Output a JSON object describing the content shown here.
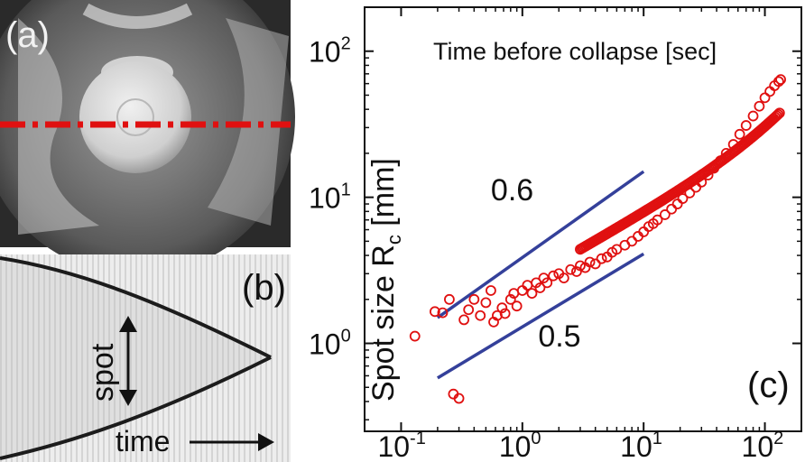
{
  "panel_a": {
    "label": "(a)"
  },
  "panel_b": {
    "label": "(b)",
    "spot_label": "spot",
    "time_label": "time"
  },
  "chart_data": {
    "type": "scatter",
    "title": "Time before collapse [sec]",
    "xlabel": "Time before collapse [sec]",
    "ylabel": "Spot size R",
    "ylabel_sub": "c",
    "ylabel_unit": " [mm]",
    "panel_label": "(c)",
    "xscale": "log",
    "yscale": "log",
    "xlim": [
      0.05,
      200
    ],
    "ylim": [
      0.25,
      200
    ],
    "x_ticks": [
      {
        "base": "10",
        "exp": "-1"
      },
      {
        "base": "10",
        "exp": "0"
      },
      {
        "base": "10",
        "exp": "1"
      },
      {
        "base": "10",
        "exp": "2"
      }
    ],
    "y_ticks": [
      {
        "base": "10",
        "exp": "0"
      },
      {
        "base": "10",
        "exp": "1"
      },
      {
        "base": "10",
        "exp": "2"
      }
    ],
    "reference_lines": [
      {
        "label": "0.6",
        "slope": 0.6,
        "x": [
          0.2,
          10
        ],
        "y": [
          1.5,
          15
        ]
      },
      {
        "label": "0.5",
        "slope": 0.5,
        "x": [
          0.2,
          10
        ],
        "y": [
          0.58,
          4.1
        ]
      }
    ],
    "series": [
      {
        "name": "Spot size R_c",
        "color": "#e01010",
        "points": [
          [
            0.13,
            1.12
          ],
          [
            0.19,
            1.65
          ],
          [
            0.22,
            1.62
          ],
          [
            0.25,
            2.0
          ],
          [
            0.27,
            0.45
          ],
          [
            0.3,
            0.42
          ],
          [
            0.33,
            1.45
          ],
          [
            0.36,
            1.7
          ],
          [
            0.4,
            2.0
          ],
          [
            0.45,
            1.55
          ],
          [
            0.5,
            1.9
          ],
          [
            0.55,
            2.3
          ],
          [
            0.58,
            1.4
          ],
          [
            0.62,
            1.55
          ],
          [
            0.68,
            1.75
          ],
          [
            0.72,
            1.6
          ],
          [
            0.8,
            2.0
          ],
          [
            0.85,
            2.2
          ],
          [
            0.9,
            1.8
          ],
          [
            1.0,
            2.3
          ],
          [
            1.1,
            2.5
          ],
          [
            1.2,
            2.2
          ],
          [
            1.3,
            2.6
          ],
          [
            1.4,
            2.4
          ],
          [
            1.5,
            2.8
          ],
          [
            1.6,
            2.6
          ],
          [
            1.8,
            2.9
          ],
          [
            2.0,
            3.0
          ],
          [
            2.2,
            2.8
          ],
          [
            2.5,
            3.2
          ],
          [
            2.8,
            3.1
          ],
          [
            3.0,
            3.4
          ],
          [
            3.3,
            3.3
          ],
          [
            3.6,
            3.6
          ],
          [
            4.0,
            3.5
          ],
          [
            4.5,
            3.8
          ],
          [
            5.0,
            3.9
          ],
          [
            5.5,
            4.2
          ],
          [
            6.0,
            4.4
          ],
          [
            7.0,
            4.7
          ],
          [
            8.0,
            5.0
          ],
          [
            9.0,
            5.4
          ],
          [
            10,
            5.8
          ],
          [
            11,
            6.3
          ],
          [
            12,
            6.6
          ],
          [
            13,
            7.0
          ],
          [
            15,
            7.6
          ],
          [
            17,
            8.3
          ],
          [
            19,
            9.0
          ],
          [
            21,
            9.8
          ],
          [
            24,
            10.7
          ],
          [
            27,
            11.7
          ],
          [
            30,
            12.7
          ],
          [
            34,
            14.2
          ],
          [
            38,
            15.8
          ],
          [
            43,
            17.8
          ],
          [
            48,
            20
          ],
          [
            55,
            23
          ],
          [
            62,
            27
          ],
          [
            70,
            31
          ],
          [
            80,
            36
          ],
          [
            90,
            42
          ],
          [
            100,
            48
          ],
          [
            110,
            53
          ],
          [
            120,
            58
          ],
          [
            130,
            62
          ],
          [
            135,
            64
          ]
        ]
      }
    ]
  }
}
